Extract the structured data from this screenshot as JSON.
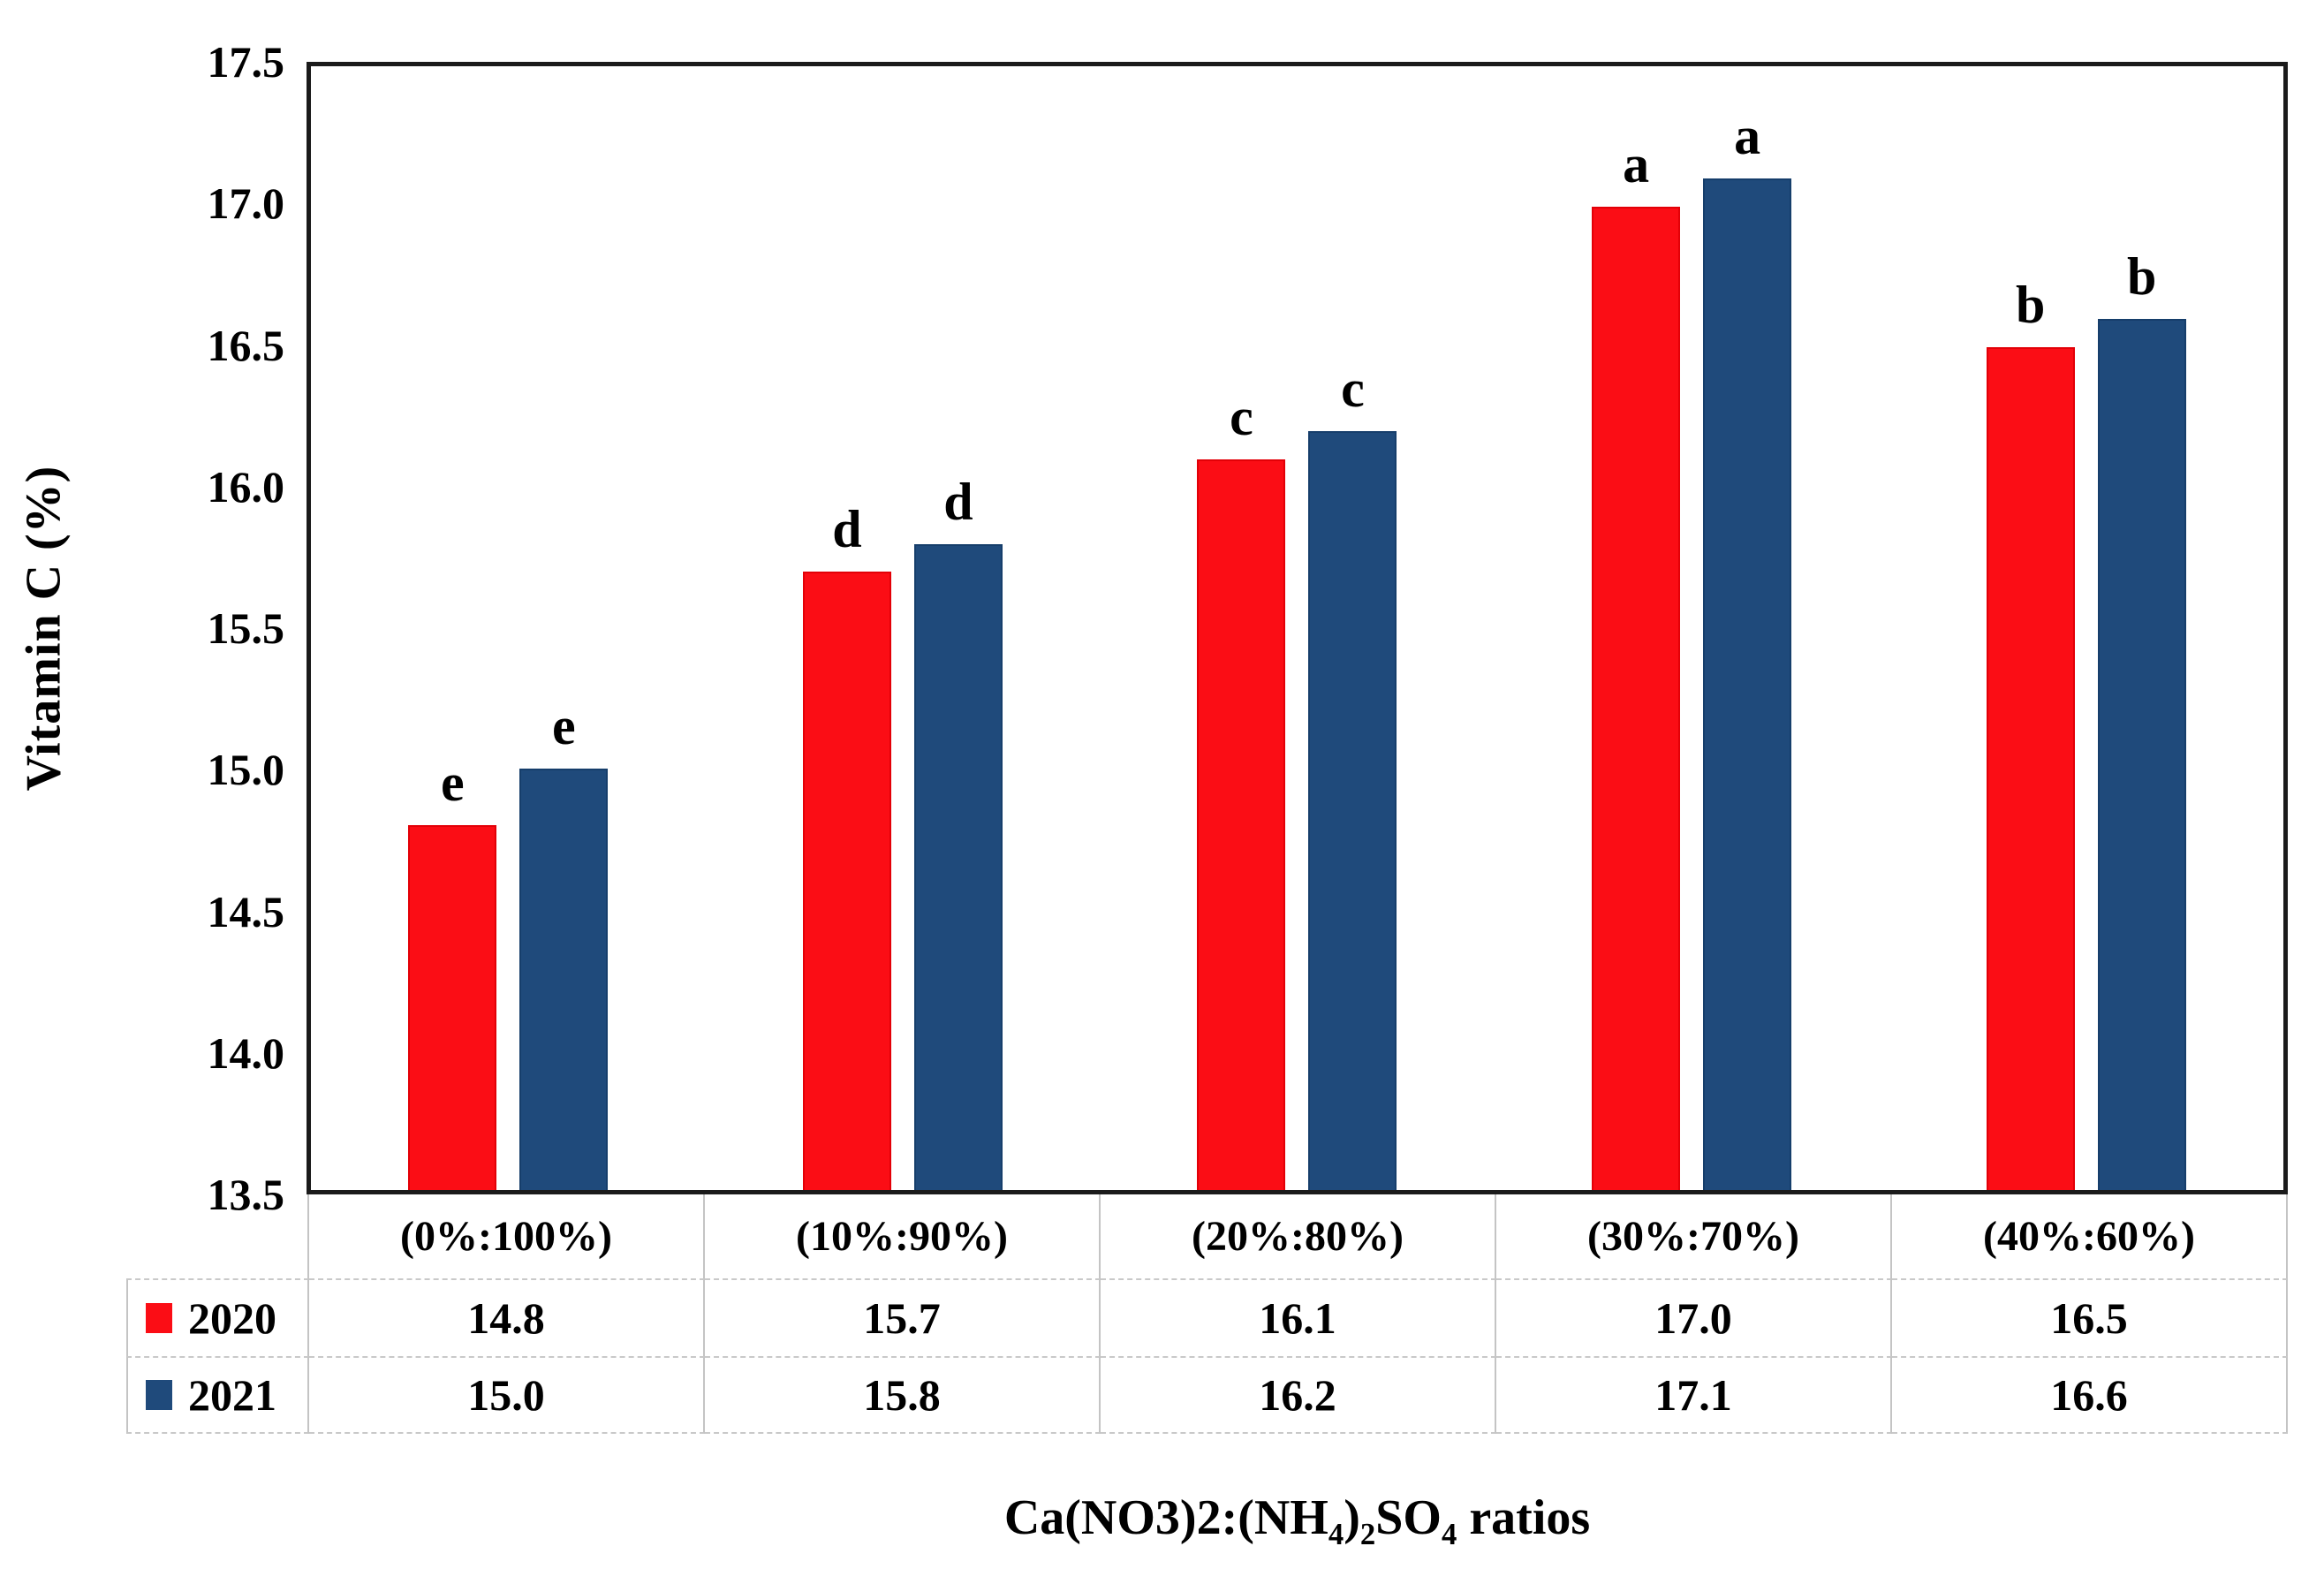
{
  "chart_data": {
    "type": "bar",
    "title": "",
    "ylabel": "Vitamin C (%)",
    "xlabel_plain": "Ca(NO3)2:(NH4)2SO4 ratios",
    "xlabel_segments": {
      "seg1": "Ca(NO3)2:(NH",
      "sub1": "4",
      "seg2": ")",
      "sub2": "2",
      "seg3": "SO",
      "sub3": "4",
      "seg4": " ratios"
    },
    "ylim": [
      13.5,
      17.5
    ],
    "ytick_step": 0.5,
    "yticks": [
      "17.5",
      "17.0",
      "16.5",
      "16.0",
      "15.5",
      "15.0",
      "14.5",
      "14.0",
      "13.5"
    ],
    "grid": false,
    "legend_position": "table-left",
    "categories": [
      "(0%:100%)",
      "(10%:90%)",
      "(20%:80%)",
      "(30%:70%)",
      "(40%:60%)"
    ],
    "series": [
      {
        "name": "2020",
        "color": "#fb0d15",
        "border_color": "#e30007",
        "values": [
          14.8,
          15.7,
          16.1,
          17.0,
          16.5
        ],
        "display": [
          "14.8",
          "15.7",
          "16.1",
          "17.0",
          "16.5"
        ],
        "letters": [
          "e",
          "d",
          "c",
          "a",
          "b"
        ]
      },
      {
        "name": "2021",
        "color": "#1f4a7b",
        "border_color": "#163e6b",
        "values": [
          15.0,
          15.8,
          16.2,
          17.1,
          16.6
        ],
        "display": [
          "15.0",
          "15.8",
          "16.2",
          "17.1",
          "16.6"
        ],
        "letters": [
          "e",
          "d",
          "c",
          "a",
          "b"
        ]
      }
    ],
    "colors": {
      "axis_border": "#1b1b1b",
      "table_line": "#c4c4c4",
      "background": "#ffffff"
    }
  }
}
